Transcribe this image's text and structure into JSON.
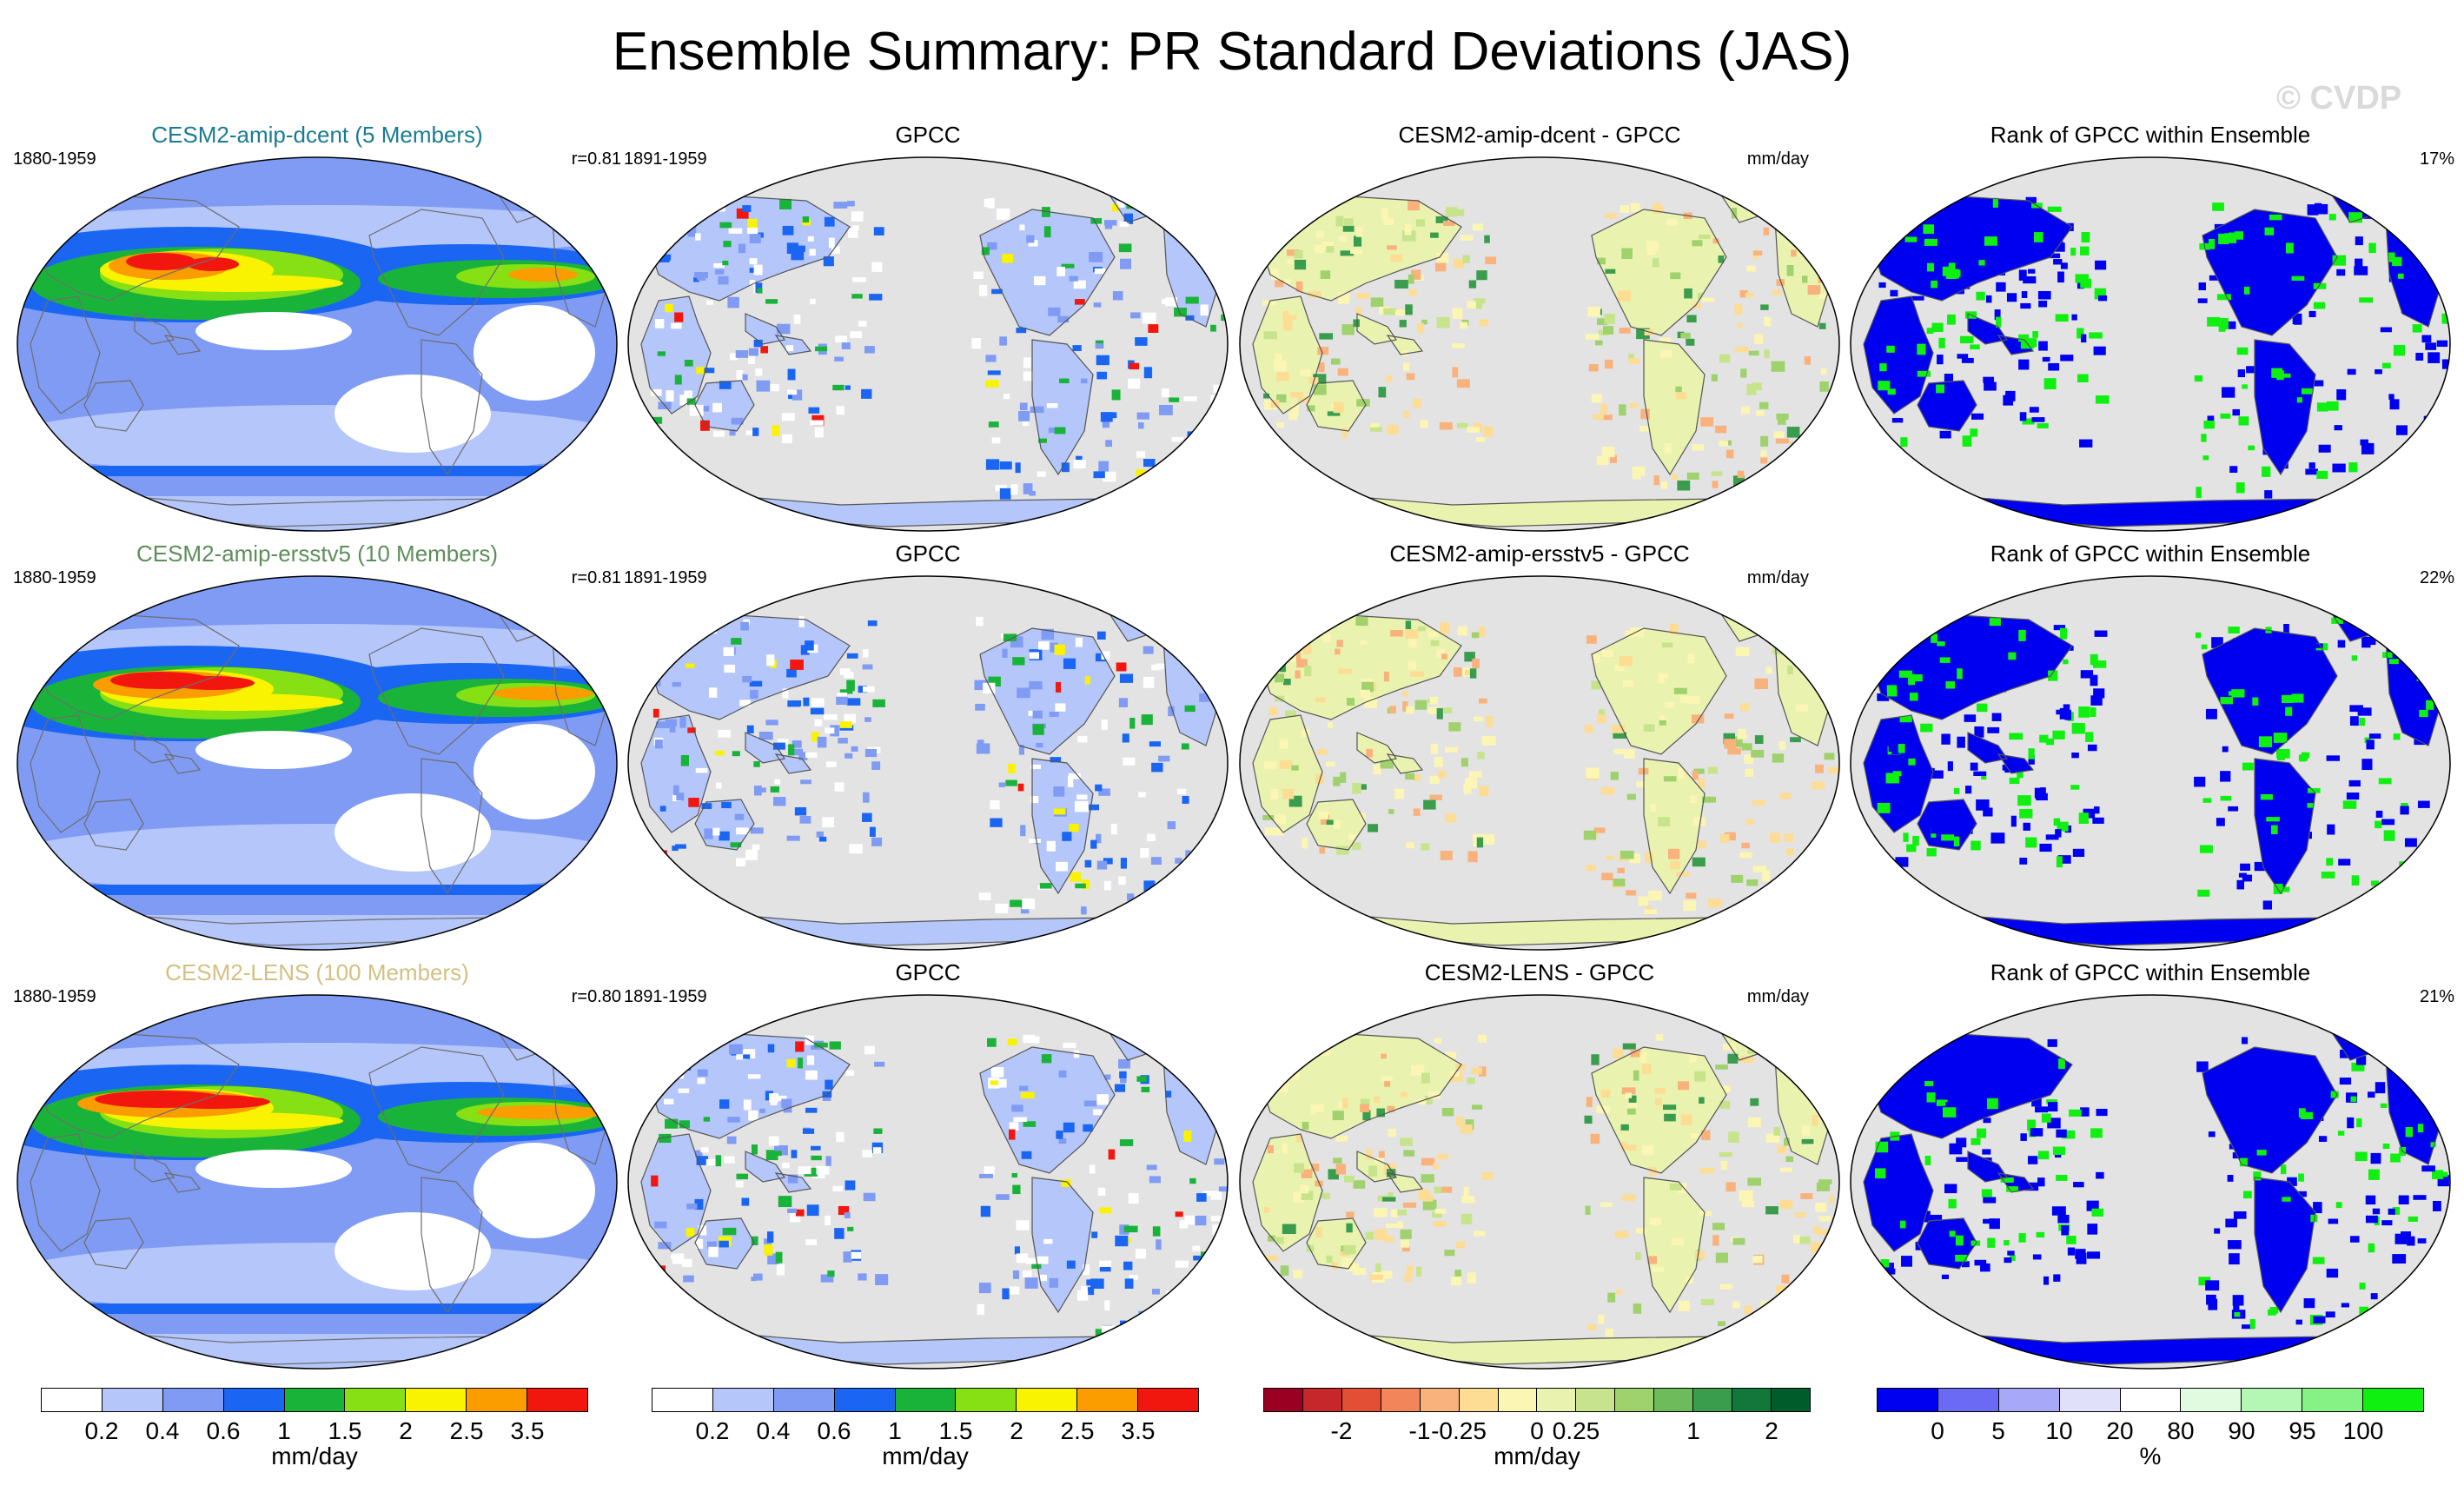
{
  "title": "Ensemble Summary: PR Standard Deviations (JAS)",
  "watermark": "© CVDP",
  "colors": {
    "ocean": "#e3e3e3",
    "coast": "#555555",
    "std_scale": [
      "#ffffff",
      "#b4c6fa",
      "#7f9bf4",
      "#1a66f2",
      "#1ab33a",
      "#86e014",
      "#f9f200",
      "#fb9c00",
      "#f2170e"
    ],
    "diff_scale": [
      "#9a0021",
      "#c5272a",
      "#e24f35",
      "#f3855a",
      "#f9b27b",
      "#fddc94",
      "#fbf6b4",
      "#e9f3af",
      "#c7e48c",
      "#9fd16c",
      "#6ebb5b",
      "#3a9d4d",
      "#12773a",
      "#005d2b"
    ],
    "rank_scale": [
      "#0000f0",
      "#6a6af5",
      "#a8a8f8",
      "#e0e0fb",
      "#ffffff",
      "#e0fbe0",
      "#b4f7b4",
      "#86f286",
      "#10f010"
    ]
  },
  "rows": [
    {
      "ensemble": {
        "title": "CESM2-amip-dcent (5 Members)",
        "title_color": "#1a7c91",
        "period": "1880-1959",
        "corr": "r=0.81"
      },
      "obs": {
        "title": "GPCC",
        "period": "1891-1959"
      },
      "diff": {
        "title": "CESM2-amip-dcent - GPCC",
        "units": "mm/day"
      },
      "rank": {
        "title": "Rank of GPCC within Ensemble",
        "percent": "17%"
      }
    },
    {
      "ensemble": {
        "title": "CESM2-amip-ersstv5 (10 Members)",
        "title_color": "#5d8e5a",
        "period": "1880-1959",
        "corr": "r=0.81"
      },
      "obs": {
        "title": "GPCC",
        "period": "1891-1959"
      },
      "diff": {
        "title": "CESM2-amip-ersstv5 - GPCC",
        "units": "mm/day"
      },
      "rank": {
        "title": "Rank of GPCC within Ensemble",
        "percent": "22%"
      }
    },
    {
      "ensemble": {
        "title": "CESM2-LENS (100 Members)",
        "title_color": "#d4c083",
        "period": "1880-1959",
        "corr": "r=0.80"
      },
      "obs": {
        "title": "GPCC",
        "period": "1891-1959"
      },
      "diff": {
        "title": "CESM2-LENS - GPCC",
        "units": "mm/day"
      },
      "rank": {
        "title": "Rank of GPCC within Ensemble",
        "percent": "21%"
      }
    }
  ],
  "colorbars": [
    {
      "units": "mm/day",
      "labels": [
        "0.2",
        "0.4",
        "0.6",
        "1",
        "1.5",
        "2",
        "2.5",
        "3.5"
      ]
    },
    {
      "units": "mm/day",
      "labels": [
        "0.2",
        "0.4",
        "0.6",
        "1",
        "1.5",
        "2",
        "2.5",
        "3.5"
      ]
    },
    {
      "units": "mm/day",
      "labels": [
        "-2",
        "-1",
        "-0.25",
        "0",
        "0.25",
        "1",
        "2"
      ]
    },
    {
      "units": "%",
      "labels": [
        "0",
        "5",
        "10",
        "20",
        "80",
        "90",
        "95",
        "100"
      ]
    }
  ]
}
